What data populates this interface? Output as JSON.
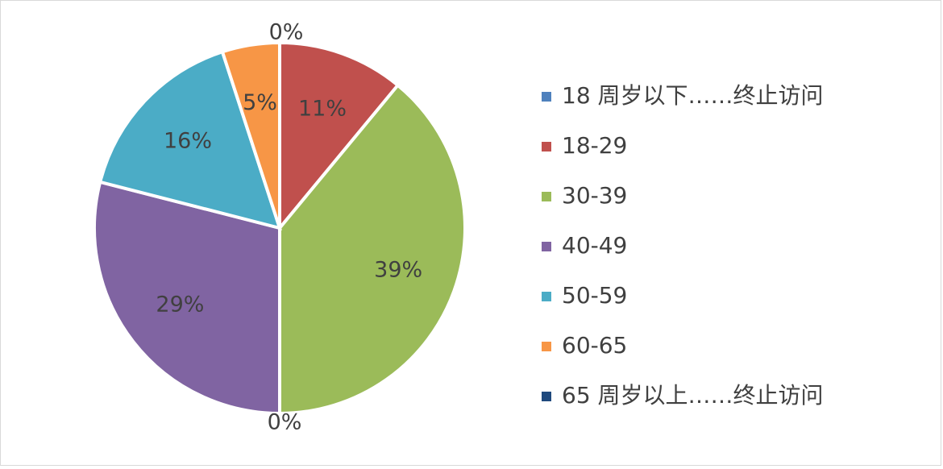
{
  "chart_data": {
    "type": "pie",
    "categories": [
      "18 周岁以下……终止访问",
      "18-29",
      "30-39",
      "40-49",
      "50-59",
      "60-65",
      "65 周岁以上……终止访问"
    ],
    "values": [
      0,
      11,
      39,
      29,
      16,
      5,
      0
    ],
    "value_labels": [
      "0%",
      "11%",
      "39%",
      "29%",
      "16%",
      "5%",
      "0%"
    ],
    "colors": [
      "#4f81bd",
      "#c0504d",
      "#9bbb59",
      "#8064a2",
      "#4bacc6",
      "#f79646",
      "#1f497d"
    ],
    "legend": "right"
  }
}
